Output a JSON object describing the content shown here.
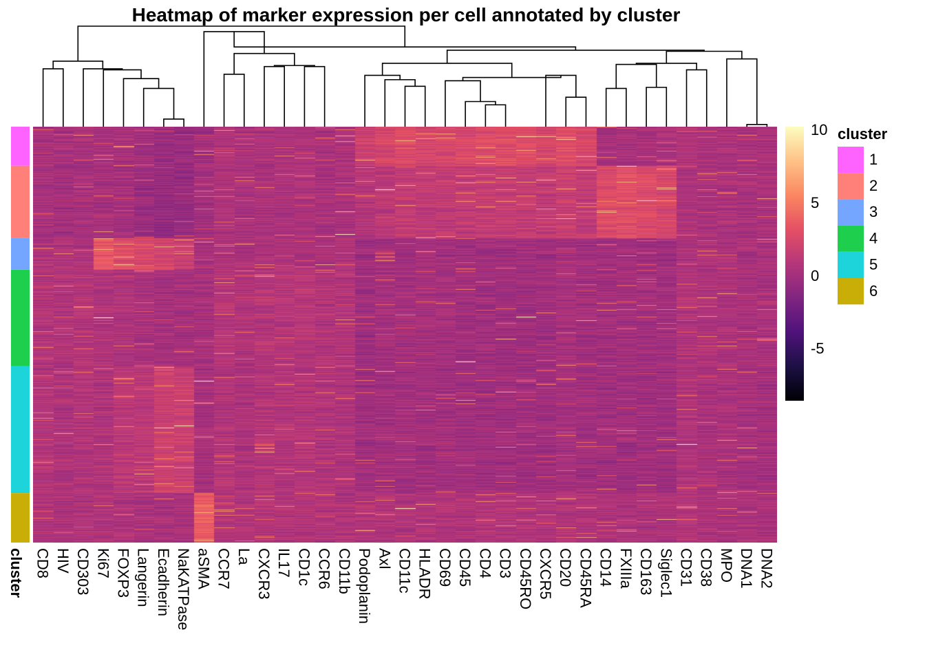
{
  "chart_data": {
    "type": "heatmap",
    "title": "Heatmap of marker expression per cell annotated by cluster",
    "markers": [
      "CD8",
      "HIV",
      "CD303",
      "Ki67",
      "FOXP3",
      "Langerin",
      "Ecadherin",
      "NaKATPase",
      "aSMA",
      "CCR7",
      "La",
      "CXCR3",
      "IL17",
      "CD1c",
      "CCR6",
      "CD11b",
      "Podoplanin",
      "Axl",
      "CD11c",
      "HLADR",
      "CD69",
      "CD45",
      "CD4",
      "CD3",
      "CD45RO",
      "CXCR5",
      "CD20",
      "CD45RA",
      "CD14",
      "FXIIIa",
      "CD163",
      "Siglec1",
      "CD31",
      "CD38",
      "MPO",
      "DNA1",
      "DNA2"
    ],
    "row_annotation_label": "cluster",
    "clusters": [
      {
        "name": "1",
        "color": "#FF63FF",
        "fraction": 0.094
      },
      {
        "name": "2",
        "color": "#FF8078",
        "fraction": 0.174
      },
      {
        "name": "3",
        "color": "#75A6FF",
        "fraction": 0.076
      },
      {
        "name": "4",
        "color": "#1ECF4E",
        "fraction": 0.232
      },
      {
        "name": "5",
        "color": "#1ED4DB",
        "fraction": 0.305
      },
      {
        "name": "6",
        "color": "#C9AE08",
        "fraction": 0.119
      }
    ],
    "cluster_means": [
      [
        0.3,
        0.2,
        0.3,
        0.3,
        0.3,
        0.0,
        -0.3,
        -0.3,
        0.1,
        0.6,
        0.4,
        0.5,
        0.5,
        0.5,
        0.4,
        0.5,
        2.0,
        2.3,
        2.8,
        2.4,
        2.4,
        2.6,
        2.8,
        3.0,
        2.8,
        2.4,
        3.0,
        2.5,
        0.3,
        0.3,
        0.3,
        0.4,
        0.6,
        0.5,
        0.5,
        0.4,
        0.4
      ],
      [
        0.3,
        0.1,
        0.3,
        0.2,
        0.2,
        -0.3,
        -0.5,
        -0.5,
        0.1,
        0.6,
        0.4,
        0.5,
        0.5,
        0.5,
        0.4,
        0.5,
        1.0,
        1.3,
        1.6,
        1.5,
        1.5,
        1.5,
        1.6,
        1.7,
        1.6,
        1.5,
        1.8,
        1.5,
        2.8,
        3.0,
        2.8,
        2.5,
        0.6,
        0.5,
        0.5,
        0.4,
        0.4
      ],
      [
        0.8,
        0.6,
        0.8,
        3.6,
        2.8,
        2.6,
        2.3,
        2.0,
        0.3,
        0.6,
        0.4,
        0.5,
        0.5,
        0.5,
        0.4,
        0.5,
        0.0,
        0.1,
        0.1,
        0.1,
        0.1,
        0.0,
        0.0,
        0.0,
        0.0,
        0.0,
        0.1,
        0.0,
        0.0,
        0.0,
        0.0,
        0.0,
        0.6,
        0.5,
        0.5,
        0.4,
        0.4
      ],
      [
        0.8,
        0.6,
        0.8,
        0.7,
        0.7,
        0.5,
        0.2,
        0.2,
        0.3,
        0.9,
        0.7,
        1.0,
        1.0,
        1.0,
        0.8,
        0.8,
        0.0,
        0.2,
        0.2,
        0.2,
        0.2,
        0.1,
        0.0,
        0.0,
        0.0,
        0.0,
        0.3,
        0.1,
        0.1,
        0.1,
        0.1,
        0.1,
        0.7,
        0.6,
        0.5,
        0.4,
        0.4
      ],
      [
        0.9,
        0.6,
        0.8,
        0.8,
        1.2,
        1.2,
        2.0,
        2.0,
        0.3,
        0.8,
        0.6,
        0.9,
        0.9,
        0.9,
        0.7,
        0.7,
        0.0,
        0.1,
        0.1,
        0.1,
        0.1,
        0.0,
        0.0,
        0.0,
        0.0,
        0.0,
        0.2,
        0.0,
        0.0,
        0.0,
        0.0,
        0.0,
        0.7,
        0.5,
        0.5,
        0.3,
        0.2
      ],
      [
        0.7,
        0.5,
        0.6,
        0.6,
        0.6,
        0.4,
        0.4,
        0.4,
        3.8,
        0.9,
        0.8,
        0.8,
        0.8,
        0.8,
        0.7,
        0.7,
        0.8,
        0.8,
        0.8,
        0.8,
        0.8,
        0.7,
        0.8,
        0.8,
        0.8,
        0.7,
        0.8,
        0.7,
        0.6,
        0.5,
        0.5,
        0.5,
        0.9,
        0.6,
        0.5,
        0.5,
        0.4
      ]
    ],
    "colorbar": {
      "ticks": [
        -5,
        0,
        5,
        10
      ],
      "range": [
        -8.5,
        10.3
      ],
      "colors": [
        "#000004",
        "#1c1044",
        "#4f127b",
        "#812581",
        "#b5367a",
        "#e55064",
        "#fb8761",
        "#fec287",
        "#fcfdbf"
      ]
    },
    "legend_title": "cluster",
    "dendrogram": {
      "merges": [
        [
          6,
          7
        ],
        [
          26,
          27
        ],
        [
          35,
          36
        ],
        [
          22,
          23
        ],
        [
          21,
          22
        ],
        [
          18,
          19
        ],
        [
          5,
          6
        ],
        [
          17,
          18
        ],
        [
          20,
          21
        ],
        [
          28,
          29
        ],
        [
          13,
          14
        ],
        [
          11,
          12
        ],
        [
          9,
          10
        ],
        [
          4,
          5
        ],
        [
          25,
          26
        ],
        [
          32,
          33
        ],
        [
          3,
          4
        ],
        [
          30,
          31
        ],
        [
          28,
          30
        ],
        [
          16,
          17
        ],
        [
          2,
          3
        ],
        [
          12,
          13
        ],
        [
          20,
          25
        ],
        [
          0,
          1
        ],
        [
          34,
          35
        ],
        [
          16,
          20
        ],
        [
          28,
          32
        ],
        [
          9,
          11
        ],
        [
          0,
          2
        ],
        [
          8,
          9
        ],
        [
          28,
          34
        ],
        [
          16,
          28
        ],
        [
          8,
          16
        ],
        [
          0,
          8
        ]
      ],
      "heights": [
        0.07,
        0.27,
        0.02,
        0.2,
        0.23,
        0.37,
        0.35,
        0.43,
        0.42,
        0.35,
        0.55,
        0.55,
        0.48,
        0.44,
        0.47,
        0.52,
        0.52,
        0.36,
        0.57,
        0.47,
        0.53,
        0.56,
        0.45,
        0.53,
        0.62,
        0.58,
        0.58,
        0.67,
        0.6,
        0.87,
        0.69,
        0.7,
        0.73,
        0.92
      ]
    }
  }
}
